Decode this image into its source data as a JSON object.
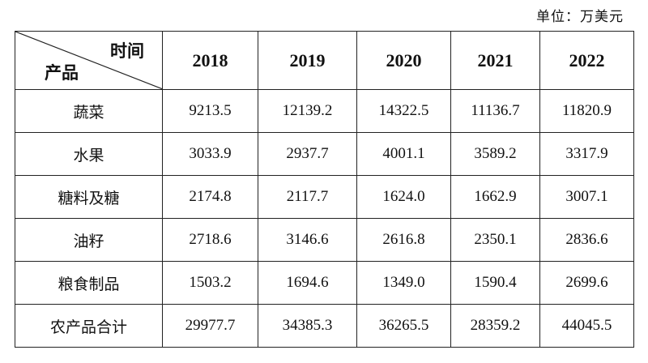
{
  "unit": "单位：万美元",
  "table": {
    "header": {
      "col_label": "时间",
      "row_label": "产品"
    },
    "columns": [
      "2018",
      "2019",
      "2020",
      "2021",
      "2022"
    ],
    "rows": [
      {
        "label": "蔬菜",
        "values": [
          "9213.5",
          "12139.2",
          "14322.5",
          "11136.7",
          "11820.9"
        ]
      },
      {
        "label": "水果",
        "values": [
          "3033.9",
          "2937.7",
          "4001.1",
          "3589.2",
          "3317.9"
        ]
      },
      {
        "label": "糖料及糖",
        "values": [
          "2174.8",
          "2117.7",
          "1624.0",
          "1662.9",
          "3007.1"
        ]
      },
      {
        "label": "油籽",
        "values": [
          "2718.6",
          "3146.6",
          "2616.8",
          "2350.1",
          "2836.6"
        ]
      },
      {
        "label": "粮食制品",
        "values": [
          "1503.2",
          "1694.6",
          "1349.0",
          "1590.4",
          "2699.6"
        ]
      },
      {
        "label": "农产品合计",
        "values": [
          "29977.7",
          "34385.3",
          "36265.5",
          "28359.2",
          "44045.5"
        ]
      }
    ]
  }
}
